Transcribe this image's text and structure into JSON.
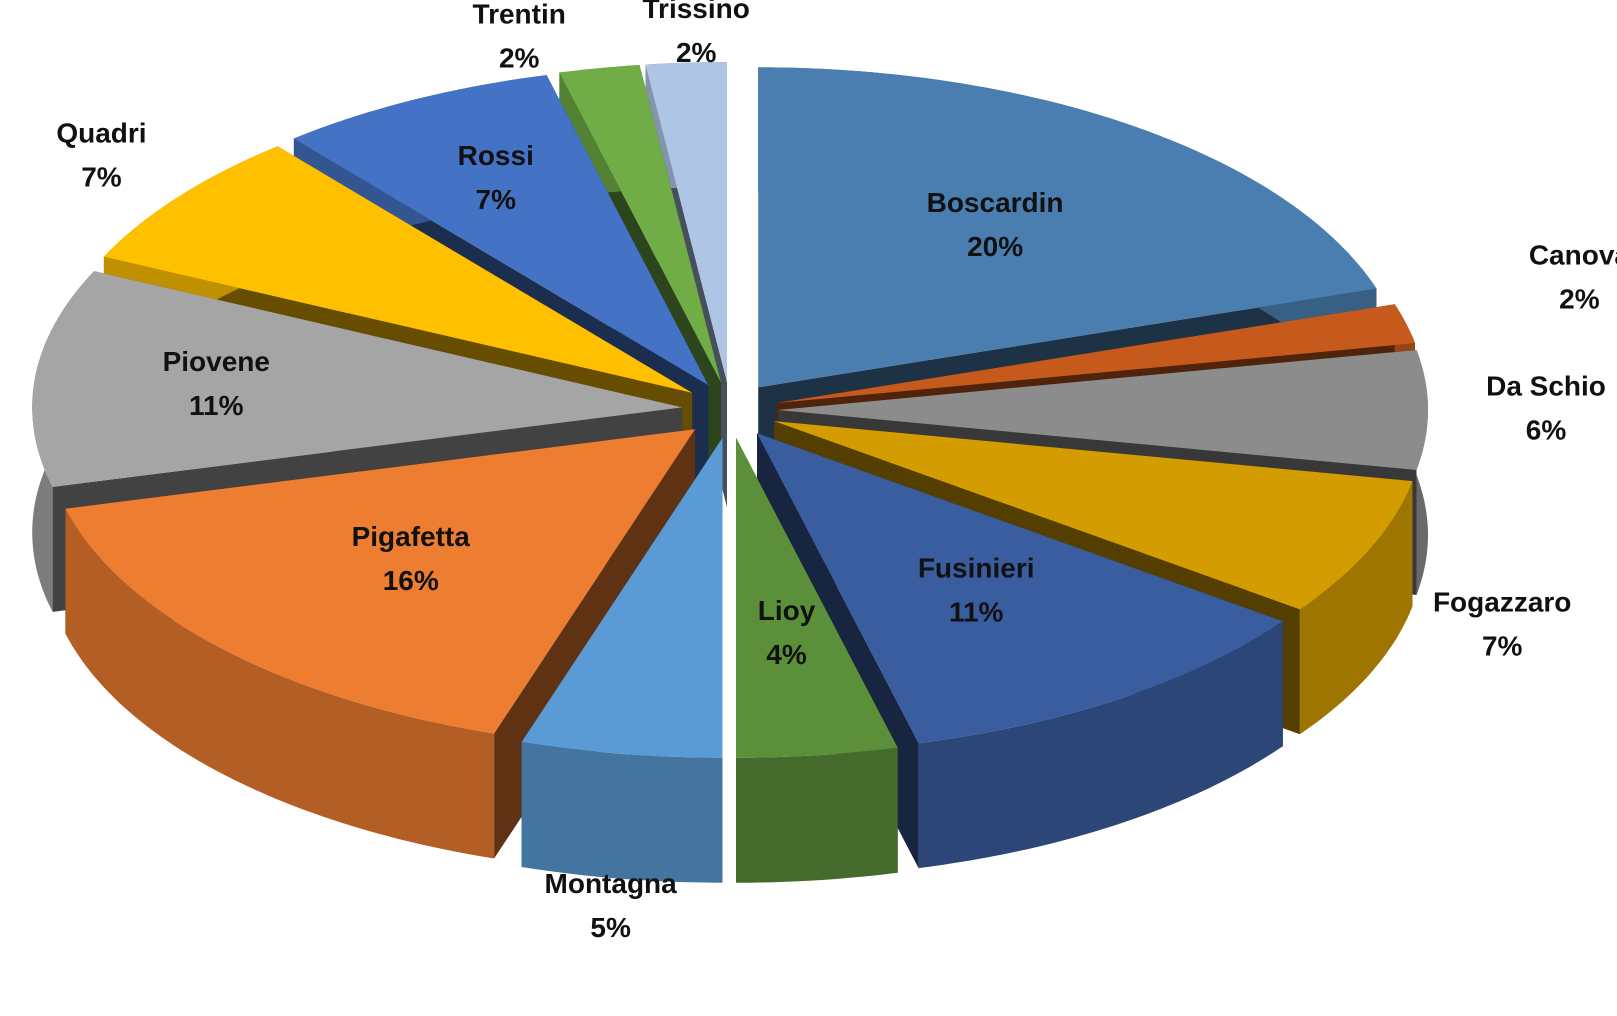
{
  "chart_data": {
    "type": "pie",
    "categories": [
      "Boscardin",
      "Canova",
      "Da Schio",
      "Fogazzaro",
      "Fusinieri",
      "Lioy",
      "Montagna",
      "Pigafetta",
      "Piovene",
      "Quadri",
      "Rossi",
      "Trentin",
      "Trissino"
    ],
    "values": [
      20,
      2,
      6,
      7,
      11,
      4,
      5,
      16,
      11,
      7,
      7,
      2,
      2
    ],
    "value_labels": [
      "20%",
      "2%",
      "6%",
      "7%",
      "11%",
      "4%",
      "5%",
      "16%",
      "11%",
      "7%",
      "7%",
      "2%",
      "2%"
    ],
    "colors": [
      "#4a7eb0",
      "#c55a1c",
      "#8c8c8c",
      "#d39c00",
      "#3a5da0",
      "#5b8f3a",
      "#5b9bd5",
      "#ed7d31",
      "#a5a5a5",
      "#ffc000",
      "#4472c4",
      "#70ad47",
      "#aec5e5"
    ]
  }
}
